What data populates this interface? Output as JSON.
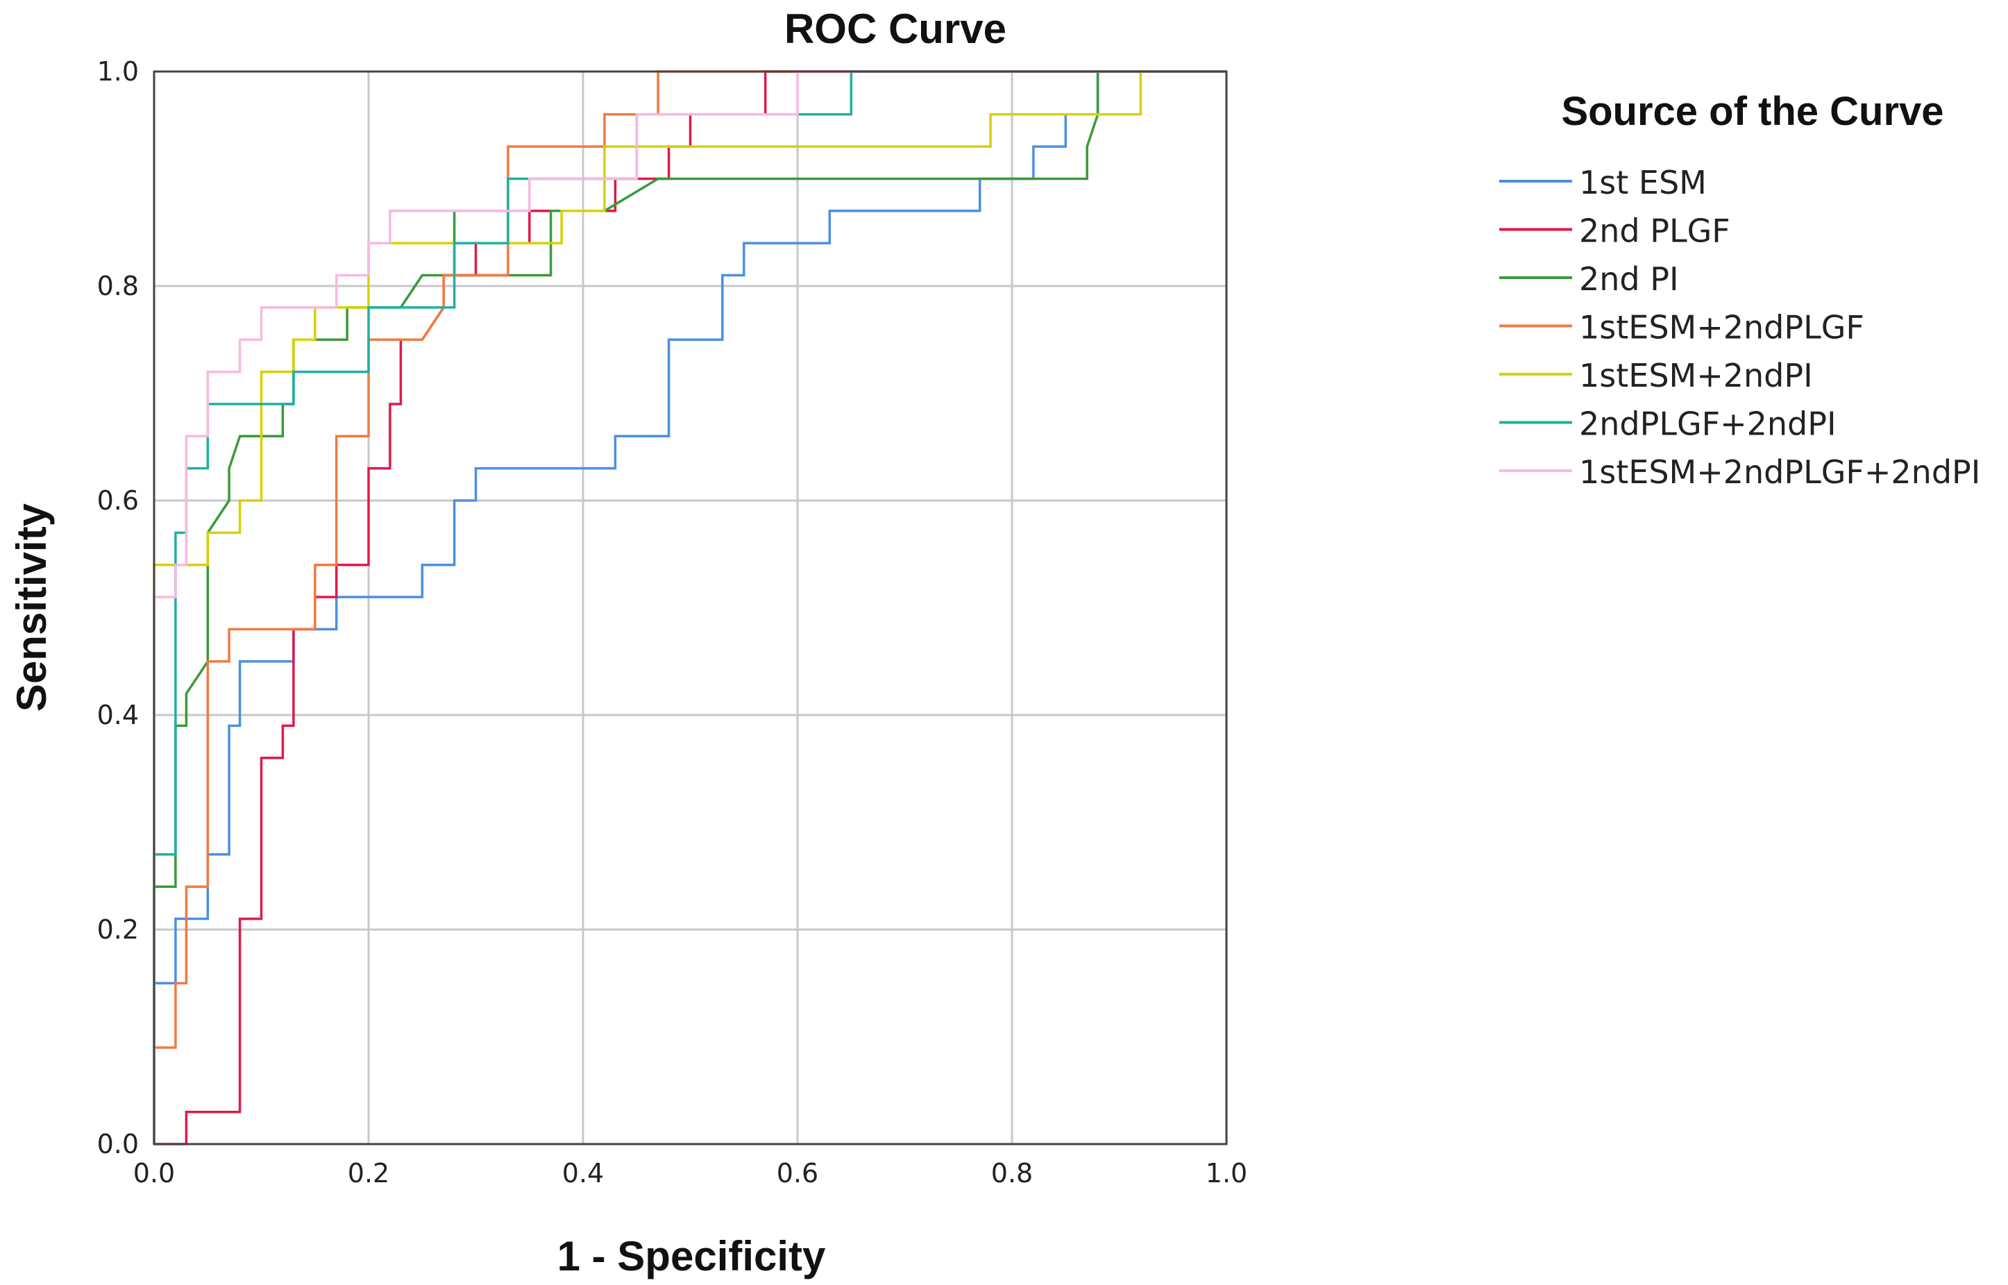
{
  "chart_data": {
    "type": "line",
    "title": "ROC Curve",
    "xlabel": "1 - Specificity",
    "ylabel": "Sensitivity",
    "xlim": [
      0,
      1
    ],
    "ylim": [
      0,
      1
    ],
    "grid": true,
    "xticks": [
      "0.0",
      "0.2",
      "0.4",
      "0.6",
      "0.8",
      "1.0"
    ],
    "yticks": [
      "0.0",
      "0.2",
      "0.4",
      "0.6",
      "0.8",
      "1.0"
    ],
    "legend_title": "Source of the Curve",
    "legend_position": "right",
    "series": [
      {
        "name": "1st ESM",
        "color": "#4a90e2",
        "points": [
          [
            0,
            0
          ],
          [
            0,
            0.15
          ],
          [
            0.02,
            0.15
          ],
          [
            0.02,
            0.21
          ],
          [
            0.05,
            0.21
          ],
          [
            0.05,
            0.27
          ],
          [
            0.07,
            0.27
          ],
          [
            0.07,
            0.39
          ],
          [
            0.08,
            0.39
          ],
          [
            0.08,
            0.45
          ],
          [
            0.13,
            0.45
          ],
          [
            0.13,
            0.48
          ],
          [
            0.17,
            0.48
          ],
          [
            0.17,
            0.51
          ],
          [
            0.25,
            0.51
          ],
          [
            0.25,
            0.54
          ],
          [
            0.28,
            0.54
          ],
          [
            0.28,
            0.6
          ],
          [
            0.3,
            0.6
          ],
          [
            0.3,
            0.63
          ],
          [
            0.43,
            0.63
          ],
          [
            0.43,
            0.66
          ],
          [
            0.48,
            0.66
          ],
          [
            0.48,
            0.75
          ],
          [
            0.53,
            0.75
          ],
          [
            0.53,
            0.81
          ],
          [
            0.55,
            0.81
          ],
          [
            0.55,
            0.84
          ],
          [
            0.63,
            0.84
          ],
          [
            0.63,
            0.87
          ],
          [
            0.77,
            0.87
          ],
          [
            0.77,
            0.9
          ],
          [
            0.82,
            0.9
          ],
          [
            0.82,
            0.93
          ],
          [
            0.85,
            0.93
          ],
          [
            0.85,
            0.96
          ],
          [
            0.88,
            0.96
          ],
          [
            0.88,
            1.0
          ],
          [
            1,
            1
          ]
        ]
      },
      {
        "name": "2nd PLGF",
        "color": "#e0194a",
        "points": [
          [
            0,
            0
          ],
          [
            0.03,
            0
          ],
          [
            0.03,
            0.03
          ],
          [
            0.08,
            0.03
          ],
          [
            0.08,
            0.21
          ],
          [
            0.1,
            0.21
          ],
          [
            0.1,
            0.36
          ],
          [
            0.12,
            0.36
          ],
          [
            0.12,
            0.39
          ],
          [
            0.13,
            0.39
          ],
          [
            0.13,
            0.48
          ],
          [
            0.15,
            0.48
          ],
          [
            0.15,
            0.51
          ],
          [
            0.17,
            0.51
          ],
          [
            0.17,
            0.54
          ],
          [
            0.2,
            0.54
          ],
          [
            0.2,
            0.63
          ],
          [
            0.22,
            0.63
          ],
          [
            0.22,
            0.69
          ],
          [
            0.23,
            0.69
          ],
          [
            0.23,
            0.75
          ],
          [
            0.25,
            0.75
          ],
          [
            0.27,
            0.78
          ],
          [
            0.27,
            0.81
          ],
          [
            0.3,
            0.81
          ],
          [
            0.3,
            0.84
          ],
          [
            0.35,
            0.84
          ],
          [
            0.35,
            0.87
          ],
          [
            0.43,
            0.87
          ],
          [
            0.43,
            0.9
          ],
          [
            0.48,
            0.9
          ],
          [
            0.48,
            0.93
          ],
          [
            0.5,
            0.93
          ],
          [
            0.5,
            0.96
          ],
          [
            0.57,
            0.96
          ],
          [
            0.57,
            1.0
          ],
          [
            1,
            1
          ]
        ]
      },
      {
        "name": "2nd PI",
        "color": "#3a9a3a",
        "points": [
          [
            0,
            0
          ],
          [
            0,
            0.24
          ],
          [
            0.02,
            0.24
          ],
          [
            0.02,
            0.39
          ],
          [
            0.03,
            0.39
          ],
          [
            0.03,
            0.42
          ],
          [
            0.05,
            0.45
          ],
          [
            0.05,
            0.57
          ],
          [
            0.07,
            0.6
          ],
          [
            0.07,
            0.63
          ],
          [
            0.08,
            0.66
          ],
          [
            0.12,
            0.66
          ],
          [
            0.12,
            0.69
          ],
          [
            0.13,
            0.69
          ],
          [
            0.13,
            0.75
          ],
          [
            0.18,
            0.75
          ],
          [
            0.18,
            0.78
          ],
          [
            0.23,
            0.78
          ],
          [
            0.25,
            0.81
          ],
          [
            0.28,
            0.81
          ],
          [
            0.28,
            0.87
          ],
          [
            0.28,
            0.81
          ],
          [
            0.37,
            0.81
          ],
          [
            0.37,
            0.87
          ],
          [
            0.42,
            0.87
          ],
          [
            0.47,
            0.9
          ],
          [
            0.87,
            0.9
          ],
          [
            0.87,
            0.93
          ],
          [
            0.88,
            0.96
          ],
          [
            0.88,
            1.0
          ],
          [
            1,
            1
          ]
        ]
      },
      {
        "name": "1stESM+2ndPLGF",
        "color": "#f07a42",
        "points": [
          [
            0,
            0
          ],
          [
            0,
            0.09
          ],
          [
            0.02,
            0.09
          ],
          [
            0.02,
            0.15
          ],
          [
            0.03,
            0.15
          ],
          [
            0.03,
            0.24
          ],
          [
            0.05,
            0.24
          ],
          [
            0.05,
            0.45
          ],
          [
            0.07,
            0.45
          ],
          [
            0.07,
            0.48
          ],
          [
            0.15,
            0.48
          ],
          [
            0.15,
            0.54
          ],
          [
            0.17,
            0.54
          ],
          [
            0.17,
            0.66
          ],
          [
            0.2,
            0.66
          ],
          [
            0.2,
            0.75
          ],
          [
            0.25,
            0.75
          ],
          [
            0.27,
            0.78
          ],
          [
            0.27,
            0.81
          ],
          [
            0.33,
            0.81
          ],
          [
            0.33,
            0.93
          ],
          [
            0.42,
            0.93
          ],
          [
            0.42,
            0.96
          ],
          [
            0.47,
            0.96
          ],
          [
            0.47,
            1.0
          ],
          [
            1,
            1
          ]
        ]
      },
      {
        "name": "1stESM+2ndPI",
        "color": "#d8d000",
        "points": [
          [
            0,
            0
          ],
          [
            0,
            0.54
          ],
          [
            0.05,
            0.54
          ],
          [
            0.05,
            0.57
          ],
          [
            0.08,
            0.57
          ],
          [
            0.08,
            0.6
          ],
          [
            0.1,
            0.6
          ],
          [
            0.1,
            0.72
          ],
          [
            0.13,
            0.72
          ],
          [
            0.13,
            0.75
          ],
          [
            0.15,
            0.75
          ],
          [
            0.15,
            0.78
          ],
          [
            0.2,
            0.78
          ],
          [
            0.2,
            0.84
          ],
          [
            0.38,
            0.84
          ],
          [
            0.38,
            0.87
          ],
          [
            0.42,
            0.87
          ],
          [
            0.42,
            0.93
          ],
          [
            0.78,
            0.93
          ],
          [
            0.78,
            0.96
          ],
          [
            0.92,
            0.96
          ],
          [
            0.92,
            1.0
          ],
          [
            1,
            1
          ]
        ]
      },
      {
        "name": "2ndPLGF+2ndPI",
        "color": "#1fb0a2",
        "points": [
          [
            0,
            0
          ],
          [
            0,
            0.27
          ],
          [
            0.02,
            0.27
          ],
          [
            0.02,
            0.57
          ],
          [
            0.03,
            0.57
          ],
          [
            0.03,
            0.63
          ],
          [
            0.05,
            0.63
          ],
          [
            0.05,
            0.69
          ],
          [
            0.13,
            0.69
          ],
          [
            0.13,
            0.72
          ],
          [
            0.2,
            0.72
          ],
          [
            0.2,
            0.78
          ],
          [
            0.28,
            0.78
          ],
          [
            0.28,
            0.84
          ],
          [
            0.33,
            0.84
          ],
          [
            0.33,
            0.9
          ],
          [
            0.45,
            0.9
          ],
          [
            0.45,
            0.96
          ],
          [
            0.65,
            0.96
          ],
          [
            0.65,
            1.0
          ],
          [
            1,
            1
          ]
        ]
      },
      {
        "name": "1stESM+2ndPLGF+2ndPI",
        "color": "#f8b8e0",
        "points": [
          [
            0,
            0
          ],
          [
            0,
            0.51
          ],
          [
            0.02,
            0.51
          ],
          [
            0.02,
            0.54
          ],
          [
            0.03,
            0.54
          ],
          [
            0.03,
            0.66
          ],
          [
            0.05,
            0.66
          ],
          [
            0.05,
            0.72
          ],
          [
            0.08,
            0.72
          ],
          [
            0.08,
            0.75
          ],
          [
            0.1,
            0.75
          ],
          [
            0.1,
            0.78
          ],
          [
            0.17,
            0.78
          ],
          [
            0.17,
            0.81
          ],
          [
            0.2,
            0.81
          ],
          [
            0.2,
            0.84
          ],
          [
            0.22,
            0.84
          ],
          [
            0.22,
            0.87
          ],
          [
            0.35,
            0.87
          ],
          [
            0.35,
            0.9
          ],
          [
            0.45,
            0.9
          ],
          [
            0.45,
            0.96
          ],
          [
            0.6,
            0.96
          ],
          [
            0.6,
            1.0
          ],
          [
            1,
            1
          ]
        ]
      }
    ]
  }
}
